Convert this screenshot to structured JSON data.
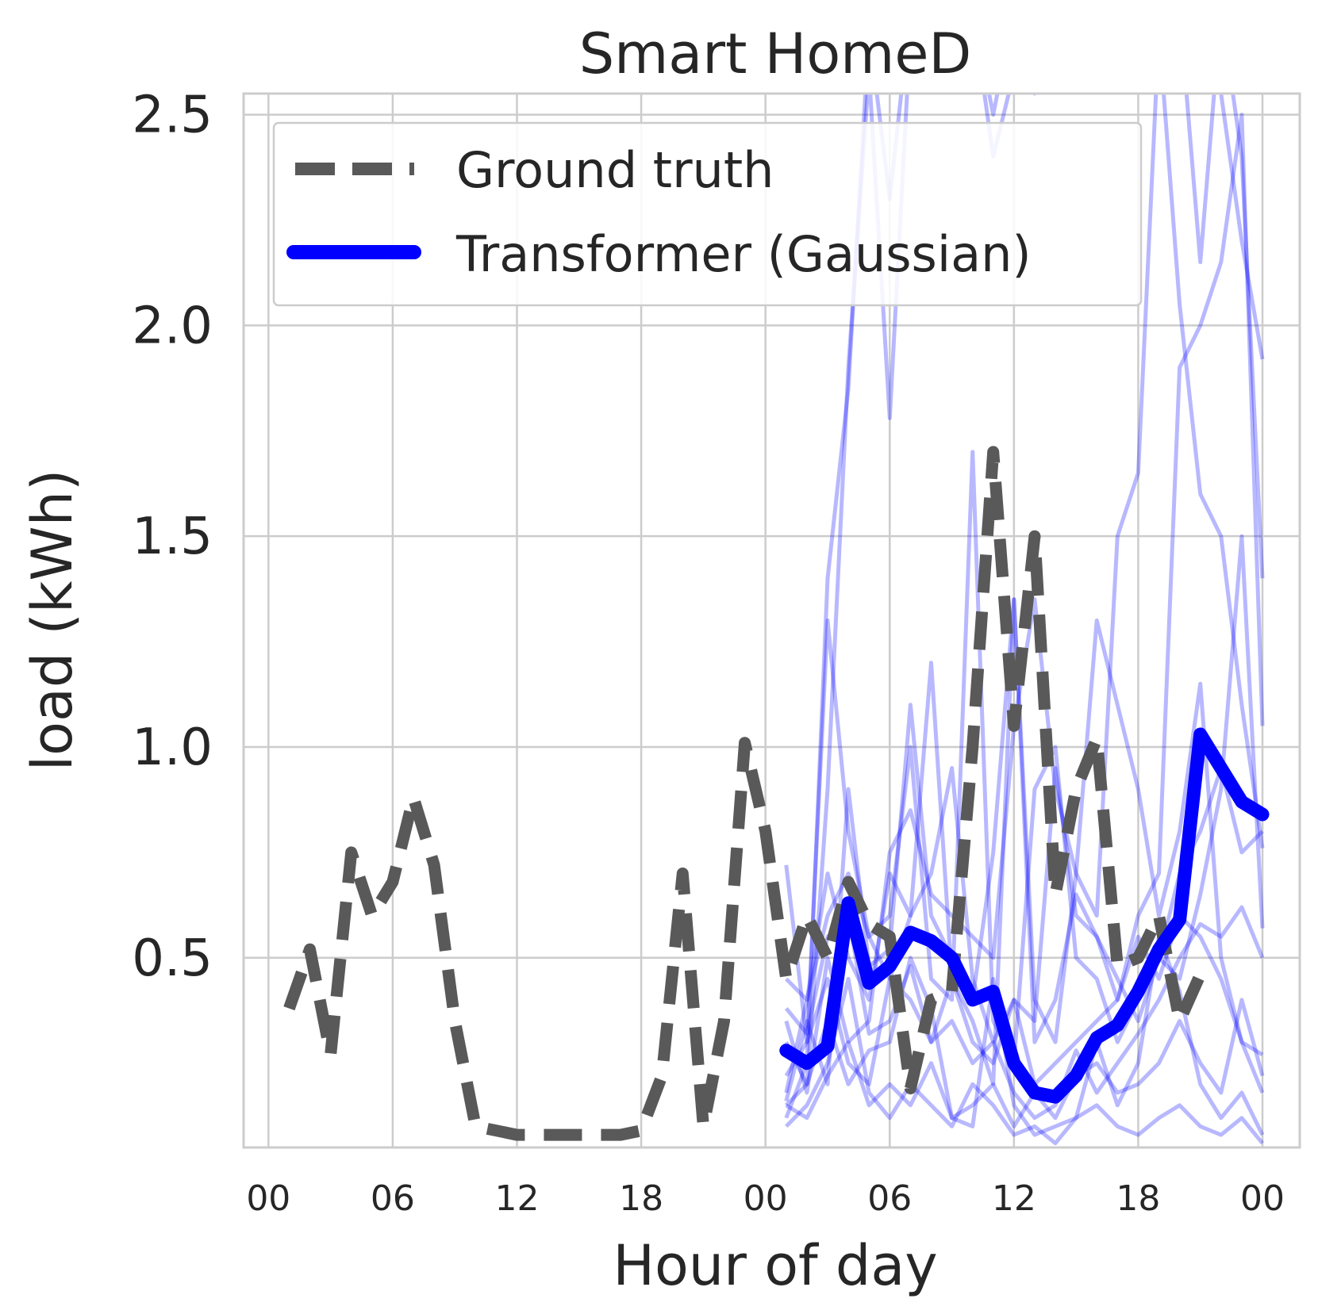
{
  "chart_data": {
    "type": "line",
    "title": "Smart HomeD",
    "xlabel": "Hour of day",
    "ylabel": "load (kWh)",
    "xlim": [
      -1.2,
      49.8
    ],
    "ylim": [
      0.05,
      2.55
    ],
    "x_ticks": [
      0,
      6,
      12,
      18,
      24,
      30,
      36,
      42,
      48
    ],
    "x_tick_labels": [
      "00",
      "06",
      "12",
      "18",
      "00",
      "06",
      "12",
      "18",
      "00"
    ],
    "y_ticks": [
      0.5,
      1.0,
      1.5,
      2.0,
      2.5
    ],
    "y_tick_labels": [
      "0.5",
      "1.0",
      "1.5",
      "2.0",
      "2.5"
    ],
    "grid": true,
    "legend_position": "top-left",
    "legend": [
      {
        "label": "Ground truth",
        "style": "dashed",
        "color": "#595959"
      },
      {
        "label": "Transformer (Gaussian)",
        "style": "solid",
        "color": "#0000ff"
      }
    ],
    "ground_truth": {
      "name": "Ground truth",
      "color": "#595959",
      "x": [
        1,
        2,
        3,
        4,
        5,
        6,
        7,
        8,
        9,
        10,
        11,
        12,
        13,
        14,
        15,
        16,
        17,
        18,
        19,
        20,
        21,
        22,
        23,
        24,
        25,
        26,
        27,
        28,
        29,
        30,
        31,
        32,
        33,
        34,
        35,
        36,
        37,
        38,
        39,
        40,
        41,
        42,
        43,
        44,
        45,
        46,
        47,
        48
      ],
      "y": [
        0.38,
        0.52,
        0.27,
        0.75,
        0.6,
        0.68,
        0.88,
        0.72,
        0.35,
        0.1,
        0.09,
        0.08,
        0.08,
        0.08,
        0.08,
        0.08,
        0.08,
        0.09,
        0.22,
        0.7,
        0.1,
        0.35,
        1.01,
        0.8,
        0.45,
        0.6,
        0.5,
        0.68,
        0.58,
        0.55,
        0.19,
        0.4,
        0.42,
        1.0,
        1.7,
        1.05,
        1.5,
        0.65,
        0.9,
        1.02,
        0.48,
        0.5,
        0.6,
        0.35,
        0.46,
        null,
        null,
        null
      ]
    },
    "transformer_mean": {
      "name": "Transformer (Gaussian)",
      "color": "#0000ff",
      "x": [
        25,
        26,
        27,
        28,
        29,
        30,
        31,
        32,
        33,
        34,
        35,
        36,
        37,
        38,
        39,
        40,
        41,
        42,
        43,
        44,
        45,
        46,
        47,
        48
      ],
      "y": [
        0.28,
        0.25,
        0.29,
        0.63,
        0.44,
        0.48,
        0.56,
        0.54,
        0.5,
        0.4,
        0.42,
        0.25,
        0.18,
        0.17,
        0.22,
        0.31,
        0.34,
        0.42,
        0.52,
        0.59,
        1.03,
        0.95,
        0.87,
        0.84
      ]
    },
    "samples": {
      "color": "#0000ff",
      "opacity": 0.28,
      "x": [
        25,
        26,
        27,
        28,
        29,
        30,
        31,
        32,
        33,
        34,
        35,
        36,
        37,
        38,
        39,
        40,
        41,
        42,
        43,
        44,
        45,
        46,
        47,
        48
      ],
      "lines": [
        [
          0.12,
          0.25,
          1.4,
          1.85,
          2.7,
          2.3,
          2.75,
          2.6,
          3.0,
          2.75,
          2.5,
          2.9,
          2.6,
          2.7,
          2.8,
          3.2,
          3.0,
          2.9,
          2.8,
          2.7,
          2.6,
          2.55,
          2.2,
          1.92
        ],
        [
          0.15,
          0.2,
          0.9,
          1.9,
          2.6,
          1.78,
          2.7,
          2.8,
          2.9,
          2.9,
          2.4,
          2.6,
          2.55,
          2.7,
          2.8,
          2.8,
          2.8,
          3.0,
          2.9,
          2.95,
          2.15,
          2.75,
          2.4,
          1.4
        ],
        [
          0.35,
          0.18,
          0.5,
          0.3,
          0.35,
          0.75,
          0.85,
          0.65,
          0.6,
          0.55,
          0.5,
          1.05,
          1.35,
          0.9,
          0.7,
          0.6,
          1.5,
          1.65,
          2.7,
          2.05,
          1.6,
          1.5,
          1.1,
          0.76
        ],
        [
          0.72,
          0.3,
          1.3,
          0.8,
          0.55,
          0.45,
          0.6,
          0.7,
          0.95,
          0.45,
          0.3,
          0.4,
          0.35,
          0.95,
          0.6,
          0.55,
          0.4,
          0.6,
          0.7,
          1.9,
          2.0,
          2.15,
          2.5,
          1.05
        ],
        [
          0.18,
          0.4,
          0.6,
          0.7,
          0.55,
          0.6,
          1.0,
          0.45,
          0.4,
          1.7,
          0.35,
          0.25,
          0.9,
          1.0,
          0.5,
          0.45,
          0.3,
          0.4,
          0.5,
          0.7,
          0.8,
          0.95,
          0.75,
          0.8
        ],
        [
          0.16,
          0.35,
          0.2,
          0.9,
          0.48,
          0.52,
          1.1,
          0.6,
          0.5,
          0.4,
          0.75,
          1.35,
          0.4,
          0.3,
          0.7,
          1.3,
          1.1,
          0.9,
          0.6,
          0.8,
          1.15,
          0.5,
          0.3,
          0.27
        ],
        [
          0.45,
          0.4,
          0.7,
          0.5,
          0.4,
          0.7,
          0.6,
          1.2,
          0.45,
          0.35,
          0.2,
          1.35,
          0.3,
          0.4,
          0.65,
          0.55,
          0.45,
          0.35,
          0.5,
          0.45,
          0.65,
          0.9,
          1.5,
          0.57
        ],
        [
          0.22,
          0.3,
          0.45,
          0.25,
          0.2,
          0.45,
          0.4,
          0.3,
          0.45,
          0.3,
          0.25,
          0.4,
          0.2,
          0.25,
          0.3,
          0.35,
          0.4,
          0.55,
          0.45,
          0.6,
          0.55,
          0.45,
          0.3,
          0.18
        ],
        [
          0.15,
          0.12,
          0.22,
          0.3,
          0.15,
          0.2,
          0.15,
          0.25,
          0.12,
          0.15,
          0.2,
          0.1,
          0.18,
          0.12,
          0.22,
          0.25,
          0.18,
          0.2,
          0.25,
          0.35,
          0.25,
          0.18,
          0.4,
          0.22
        ],
        [
          0.3,
          0.2,
          0.35,
          0.2,
          0.28,
          0.3,
          0.5,
          0.38,
          0.12,
          0.1,
          0.45,
          0.15,
          0.08,
          0.1,
          0.12,
          0.3,
          0.15,
          0.25,
          0.55,
          0.42,
          0.2,
          0.12,
          0.18,
          0.08
        ],
        [
          0.1,
          0.15,
          0.25,
          0.45,
          0.18,
          0.12,
          0.2,
          0.15,
          0.1,
          0.2,
          0.15,
          0.08,
          0.1,
          0.06,
          0.12,
          0.15,
          0.1,
          0.08,
          0.12,
          0.15,
          0.1,
          0.08,
          0.12,
          0.06
        ],
        [
          0.38,
          0.32,
          0.55,
          0.6,
          0.32,
          0.35,
          0.48,
          0.3,
          0.35,
          0.25,
          0.3,
          0.18,
          0.12,
          0.15,
          0.28,
          0.18,
          0.25,
          0.32,
          0.4,
          0.5,
          0.58,
          0.55,
          0.62,
          0.5
        ]
      ]
    }
  }
}
